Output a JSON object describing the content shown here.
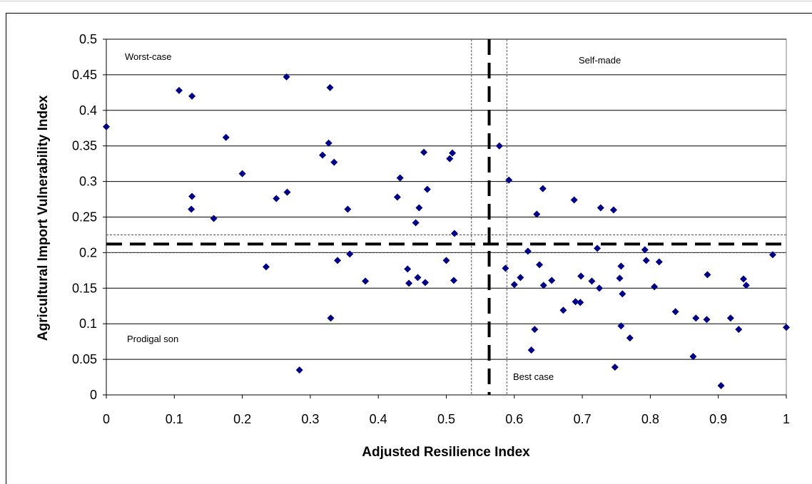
{
  "chart_data": {
    "type": "scatter",
    "title": "",
    "xlabel": "Adjusted Resilience Index",
    "ylabel": "Agricultural Import Vulnerability Index",
    "xlim": [
      0,
      1
    ],
    "ylim": [
      0,
      0.5
    ],
    "x_ticks": [
      "0",
      "0.1",
      "0.2",
      "0.3",
      "0.4",
      "0.5",
      "0.6",
      "0.7",
      "0.8",
      "0.9",
      "1"
    ],
    "y_ticks": [
      "0",
      "0.05",
      "0.1",
      "0.15",
      "0.2",
      "0.25",
      "0.3",
      "0.35",
      "0.4",
      "0.45",
      "0.5"
    ],
    "grid": "horizontal",
    "marker_color": "#00008B",
    "quadrant_labels": {
      "top_left": "Worst-case",
      "top_right": "Self-made",
      "bottom_left": "Prodigal son",
      "bottom_right": "Best case"
    },
    "reference_lines": {
      "x_mean": 0.563,
      "x_band": [
        0.537,
        0.589
      ],
      "y_mean": 0.212,
      "y_band": [
        0.2,
        0.225
      ]
    },
    "points": [
      [
        0.0,
        0.377
      ],
      [
        0.107,
        0.428
      ],
      [
        0.126,
        0.42
      ],
      [
        0.265,
        0.447
      ],
      [
        0.329,
        0.432
      ],
      [
        0.176,
        0.362
      ],
      [
        0.2,
        0.311
      ],
      [
        0.126,
        0.279
      ],
      [
        0.125,
        0.261
      ],
      [
        0.158,
        0.248
      ],
      [
        0.25,
        0.276
      ],
      [
        0.266,
        0.285
      ],
      [
        0.318,
        0.337
      ],
      [
        0.327,
        0.354
      ],
      [
        0.335,
        0.327
      ],
      [
        0.355,
        0.261
      ],
      [
        0.235,
        0.18
      ],
      [
        0.33,
        0.108
      ],
      [
        0.284,
        0.035
      ],
      [
        0.34,
        0.189
      ],
      [
        0.358,
        0.198
      ],
      [
        0.381,
        0.16
      ],
      [
        0.428,
        0.278
      ],
      [
        0.432,
        0.305
      ],
      [
        0.46,
        0.263
      ],
      [
        0.455,
        0.242
      ],
      [
        0.467,
        0.341
      ],
      [
        0.472,
        0.289
      ],
      [
        0.505,
        0.332
      ],
      [
        0.509,
        0.34
      ],
      [
        0.512,
        0.227
      ],
      [
        0.443,
        0.177
      ],
      [
        0.445,
        0.157
      ],
      [
        0.458,
        0.165
      ],
      [
        0.469,
        0.158
      ],
      [
        0.5,
        0.189
      ],
      [
        0.511,
        0.161
      ],
      [
        0.578,
        0.35
      ],
      [
        0.592,
        0.302
      ],
      [
        0.587,
        0.178
      ],
      [
        0.6,
        0.155
      ],
      [
        0.609,
        0.165
      ],
      [
        0.62,
        0.202
      ],
      [
        0.625,
        0.063
      ],
      [
        0.63,
        0.092
      ],
      [
        0.633,
        0.254
      ],
      [
        0.637,
        0.183
      ],
      [
        0.642,
        0.29
      ],
      [
        0.643,
        0.154
      ],
      [
        0.655,
        0.161
      ],
      [
        0.672,
        0.119
      ],
      [
        0.688,
        0.274
      ],
      [
        0.69,
        0.131
      ],
      [
        0.697,
        0.13
      ],
      [
        0.698,
        0.167
      ],
      [
        0.714,
        0.16
      ],
      [
        0.722,
        0.206
      ],
      [
        0.725,
        0.15
      ],
      [
        0.727,
        0.263
      ],
      [
        0.746,
        0.26
      ],
      [
        0.748,
        0.039
      ],
      [
        0.755,
        0.164
      ],
      [
        0.757,
        0.181
      ],
      [
        0.757,
        0.097
      ],
      [
        0.759,
        0.142
      ],
      [
        0.77,
        0.08
      ],
      [
        0.792,
        0.204
      ],
      [
        0.794,
        0.189
      ],
      [
        0.806,
        0.152
      ],
      [
        0.813,
        0.187
      ],
      [
        0.837,
        0.117
      ],
      [
        0.863,
        0.054
      ],
      [
        0.867,
        0.108
      ],
      [
        0.883,
        0.106
      ],
      [
        0.884,
        0.169
      ],
      [
        0.904,
        0.013
      ],
      [
        0.918,
        0.108
      ],
      [
        0.93,
        0.092
      ],
      [
        0.937,
        0.163
      ],
      [
        0.941,
        0.154
      ],
      [
        0.98,
        0.197
      ],
      [
        1.0,
        0.095
      ]
    ]
  }
}
